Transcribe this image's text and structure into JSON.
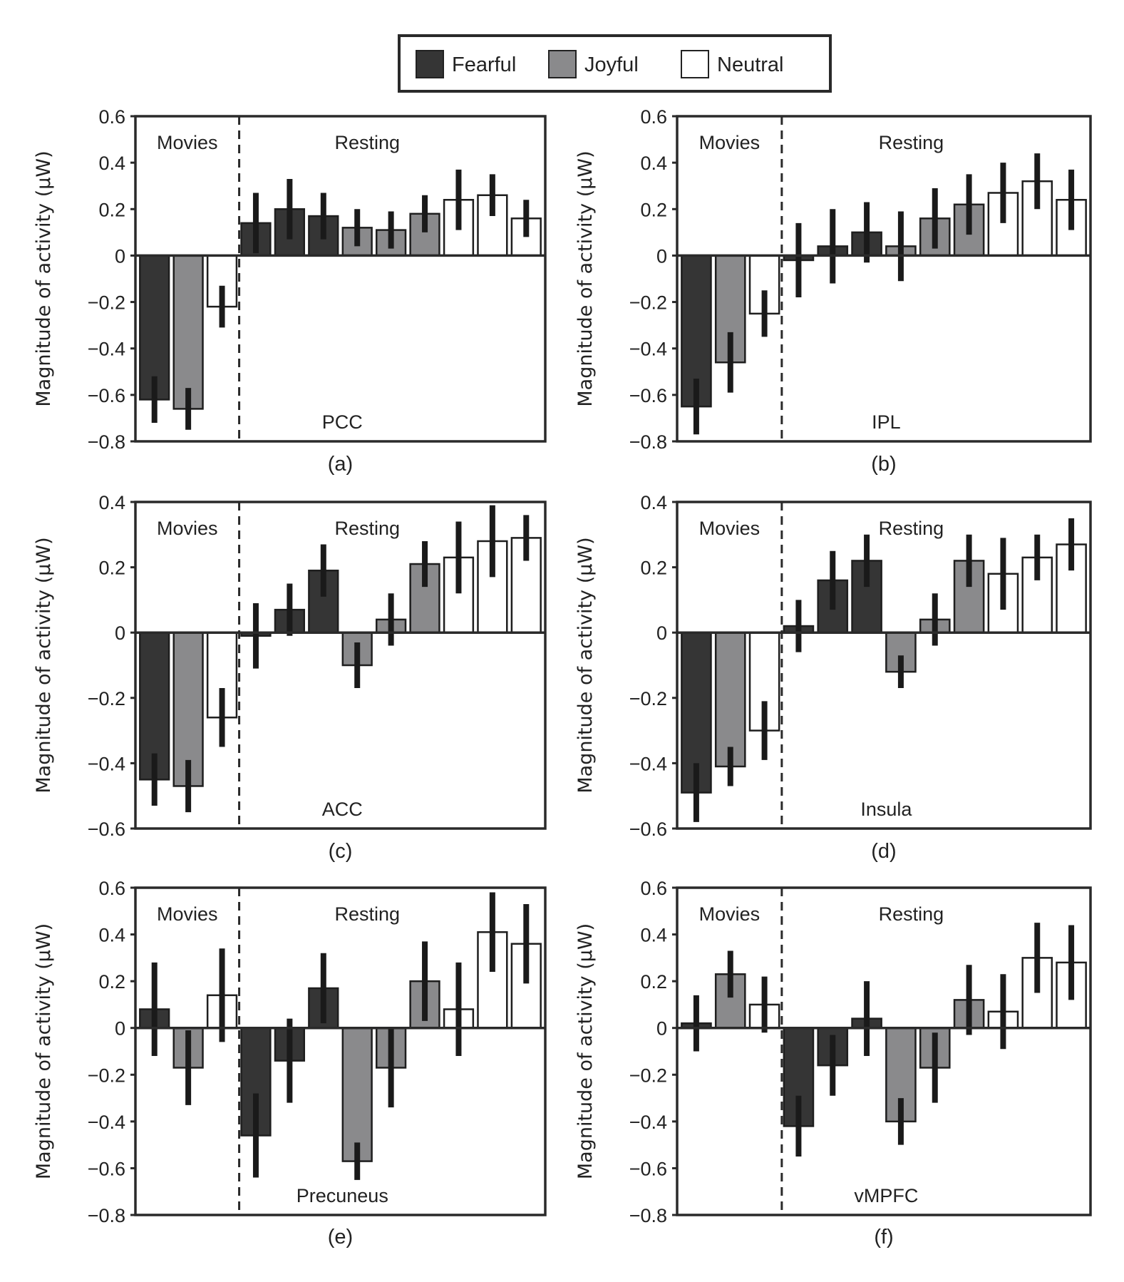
{
  "legend": {
    "items": [
      {
        "label": "Fearful",
        "color": "#353535"
      },
      {
        "label": "Joyful",
        "color": "#8a8a8c"
      },
      {
        "label": "Neutral",
        "color": "#ffffff"
      }
    ]
  },
  "chart_data": [
    {
      "type": "bar",
      "panel": "(a)",
      "region": "PCC",
      "ylabel": "Magnitude of activity (μW)",
      "ylim": [
        -0.8,
        0.6
      ],
      "yticks": [
        "0.6",
        "0.4",
        "0.2",
        "0",
        "−0.2",
        "−0.4",
        "−0.6",
        "−0.8"
      ],
      "ytick_values": [
        0.6,
        0.4,
        0.2,
        0,
        -0.2,
        -0.4,
        -0.6,
        -0.8
      ],
      "sections": [
        "Movies",
        "Resting"
      ],
      "categories": [
        "Fearful",
        "Joyful",
        "Neutral",
        "Fearful",
        "Fearful",
        "Fearful",
        "Joyful",
        "Joyful",
        "Joyful",
        "Neutral",
        "Neutral",
        "Neutral"
      ],
      "values": [
        -0.62,
        -0.66,
        -0.22,
        0.14,
        0.2,
        0.17,
        0.12,
        0.11,
        0.18,
        0.24,
        0.26,
        0.16
      ],
      "errors": [
        0.1,
        0.09,
        0.09,
        0.13,
        0.13,
        0.1,
        0.08,
        0.08,
        0.08,
        0.13,
        0.09,
        0.08
      ]
    },
    {
      "type": "bar",
      "panel": "(b)",
      "region": "IPL",
      "ylabel": "Magnitude of activity (μW)",
      "ylim": [
        -0.8,
        0.6
      ],
      "yticks": [
        "0.6",
        "0.4",
        "0.2",
        "0",
        "−0.2",
        "−0.4",
        "−0.6",
        "−0.8"
      ],
      "ytick_values": [
        0.6,
        0.4,
        0.2,
        0,
        -0.2,
        -0.4,
        -0.6,
        -0.8
      ],
      "sections": [
        "Movies",
        "Resting"
      ],
      "categories": [
        "Fearful",
        "Joyful",
        "Neutral",
        "Fearful",
        "Fearful",
        "Fearful",
        "Joyful",
        "Joyful",
        "Joyful",
        "Neutral",
        "Neutral",
        "Neutral"
      ],
      "values": [
        -0.65,
        -0.46,
        -0.25,
        -0.02,
        0.04,
        0.1,
        0.04,
        0.16,
        0.22,
        0.27,
        0.32,
        0.24
      ],
      "errors": [
        0.12,
        0.13,
        0.1,
        0.16,
        0.16,
        0.13,
        0.15,
        0.13,
        0.13,
        0.13,
        0.12,
        0.13
      ]
    },
    {
      "type": "bar",
      "panel": "(c)",
      "region": "ACC",
      "ylabel": "Magnitude of activity (μW)",
      "ylim": [
        -0.6,
        0.4
      ],
      "yticks": [
        "0.4",
        "0.2",
        "0",
        "−0.2",
        "−0.4",
        "−0.6"
      ],
      "ytick_values": [
        0.4,
        0.2,
        0,
        -0.2,
        -0.4,
        -0.6
      ],
      "sections": [
        "Movies",
        "Resting"
      ],
      "categories": [
        "Fearful",
        "Joyful",
        "Neutral",
        "Fearful",
        "Fearful",
        "Fearful",
        "Joyful",
        "Joyful",
        "Joyful",
        "Neutral",
        "Neutral",
        "Neutral"
      ],
      "values": [
        -0.45,
        -0.47,
        -0.26,
        -0.01,
        0.07,
        0.19,
        -0.1,
        0.04,
        0.21,
        0.23,
        0.28,
        0.29
      ],
      "errors": [
        0.08,
        0.08,
        0.09,
        0.1,
        0.08,
        0.08,
        0.07,
        0.08,
        0.07,
        0.11,
        0.11,
        0.07
      ]
    },
    {
      "type": "bar",
      "panel": "(d)",
      "region": "Insula",
      "ylabel": "Magnitude of activity (μW)",
      "ylim": [
        -0.6,
        0.4
      ],
      "yticks": [
        "0.4",
        "0.2",
        "0",
        "−0.2",
        "−0.4",
        "−0.6"
      ],
      "ytick_values": [
        0.4,
        0.2,
        0,
        -0.2,
        -0.4,
        -0.6
      ],
      "sections": [
        "Movies",
        "Resting"
      ],
      "categories": [
        "Fearful",
        "Joyful",
        "Neutral",
        "Fearful",
        "Fearful",
        "Fearful",
        "Joyful",
        "Joyful",
        "Joyful",
        "Neutral",
        "Neutral",
        "Neutral"
      ],
      "values": [
        -0.49,
        -0.41,
        -0.3,
        0.02,
        0.16,
        0.22,
        -0.12,
        0.04,
        0.22,
        0.18,
        0.23,
        0.27
      ],
      "errors": [
        0.09,
        0.06,
        0.09,
        0.08,
        0.09,
        0.08,
        0.05,
        0.08,
        0.08,
        0.11,
        0.07,
        0.08
      ]
    },
    {
      "type": "bar",
      "panel": "(e)",
      "region": "Precuneus",
      "ylabel": "Magnitude of activity (μW)",
      "ylim": [
        -0.8,
        0.6
      ],
      "yticks": [
        "0.6",
        "0.4",
        "0.2",
        "0",
        "−0.2",
        "−0.4",
        "−0.6",
        "−0.8"
      ],
      "ytick_values": [
        0.6,
        0.4,
        0.2,
        0,
        -0.2,
        -0.4,
        -0.6,
        -0.8
      ],
      "sections": [
        "Movies",
        "Resting"
      ],
      "categories": [
        "Fearful",
        "Joyful",
        "Neutral",
        "Fearful",
        "Fearful",
        "Fearful",
        "Joyful",
        "Joyful",
        "Joyful",
        "Neutral",
        "Neutral",
        "Neutral"
      ],
      "values": [
        0.08,
        -0.17,
        0.14,
        -0.46,
        -0.14,
        0.17,
        -0.57,
        -0.17,
        0.2,
        0.08,
        0.41,
        0.36
      ],
      "errors": [
        0.2,
        0.16,
        0.2,
        0.18,
        0.18,
        0.15,
        0.08,
        0.17,
        0.17,
        0.2,
        0.17,
        0.17
      ]
    },
    {
      "type": "bar",
      "panel": "(f)",
      "region": "vMPFC",
      "ylabel": "Magnitude of activity (μW)",
      "ylim": [
        -0.8,
        0.6
      ],
      "yticks": [
        "0.6",
        "0.4",
        "0.2",
        "0",
        "−0.2",
        "−0.4",
        "−0.6",
        "−0.8"
      ],
      "ytick_values": [
        0.6,
        0.4,
        0.2,
        0,
        -0.2,
        -0.4,
        -0.6,
        -0.8
      ],
      "sections": [
        "Movies",
        "Resting"
      ],
      "categories": [
        "Fearful",
        "Joyful",
        "Neutral",
        "Fearful",
        "Fearful",
        "Fearful",
        "Joyful",
        "Joyful",
        "Joyful",
        "Neutral",
        "Neutral",
        "Neutral"
      ],
      "values": [
        0.02,
        0.23,
        0.1,
        -0.42,
        -0.16,
        0.04,
        -0.4,
        -0.17,
        0.12,
        0.07,
        0.3,
        0.28
      ],
      "errors": [
        0.12,
        0.1,
        0.12,
        0.13,
        0.13,
        0.16,
        0.1,
        0.15,
        0.15,
        0.16,
        0.15,
        0.16
      ]
    }
  ]
}
